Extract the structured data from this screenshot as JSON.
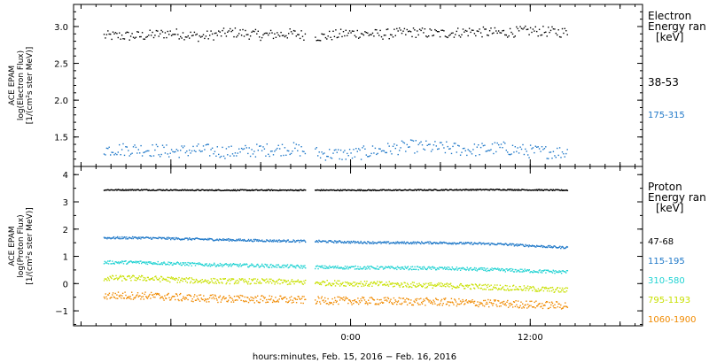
{
  "chart_data": [
    {
      "type": "scatter",
      "panel": "electrons",
      "ylabel_lines": [
        "ACE EPAM",
        "log(Electron Flux)",
        "[1/(cm²s ster MeV)]"
      ],
      "y_ticks": [
        "1.5",
        "2.0",
        "2.5",
        "3.0"
      ],
      "ylim": [
        1.1,
        3.3
      ],
      "legend_title": [
        "Electron",
        "Energy ran"
      ],
      "legend_unit": "[keV]",
      "data_gap_hours": [
        -3.0,
        -2.4
      ],
      "series": [
        {
          "name": "38-53",
          "color": "#000000",
          "level": 2.9,
          "scatter": 0.07,
          "points": [
            [
              -14,
              2.88
            ],
            [
              -12,
              2.92
            ],
            [
              -10,
              2.87
            ],
            [
              -8,
              2.93
            ],
            [
              -6,
              2.89
            ],
            [
              -4,
              2.91
            ],
            [
              -2,
              2.87
            ],
            [
              0,
              2.92
            ],
            [
              2,
              2.9
            ],
            [
              4,
              2.93
            ],
            [
              6,
              2.91
            ],
            [
              8,
              2.94
            ],
            [
              10,
              2.92
            ],
            [
              12,
              2.95
            ],
            [
              14,
              2.93
            ]
          ]
        },
        {
          "name": "175-315",
          "color": "#1f78c8",
          "level": 1.32,
          "scatter": 0.09,
          "points": [
            [
              -14,
              1.34
            ],
            [
              -12,
              1.31
            ],
            [
              -10,
              1.33
            ],
            [
              -8,
              1.3
            ],
            [
              -6,
              1.33
            ],
            [
              -4,
              1.35
            ],
            [
              -2,
              1.28
            ],
            [
              0,
              1.27
            ],
            [
              2,
              1.33
            ],
            [
              4,
              1.38
            ],
            [
              6,
              1.36
            ],
            [
              8,
              1.33
            ],
            [
              10,
              1.36
            ],
            [
              12,
              1.31
            ],
            [
              14,
              1.3
            ]
          ]
        }
      ]
    },
    {
      "type": "scatter",
      "panel": "protons",
      "ylabel_lines": [
        "ACE EPAM",
        "log(Proton Flux)",
        "[1/(cm²s ster MeV)]"
      ],
      "y_ticks": [
        "−1",
        "0",
        "1",
        "2",
        "3",
        "4"
      ],
      "ylim": [
        -1.55,
        4.3
      ],
      "legend_title": [
        "Proton",
        "Energy ran"
      ],
      "legend_unit": "[keV]",
      "data_gap_hours": [
        -3.0,
        -2.4
      ],
      "series": [
        {
          "name": "47-68",
          "color": "#000000",
          "level": 3.45,
          "scatter": 0.02,
          "points": [
            [
              -14,
              3.46
            ],
            [
              -10,
              3.45
            ],
            [
              -6,
              3.45
            ],
            [
              -2,
              3.45
            ],
            [
              2,
              3.45
            ],
            [
              6,
              3.46
            ],
            [
              10,
              3.47
            ],
            [
              14,
              3.45
            ]
          ]
        },
        {
          "name": "115-195",
          "color": "#1f78c8",
          "level": 1.55,
          "scatter": 0.04,
          "points": [
            [
              -14,
              1.7
            ],
            [
              -10,
              1.65
            ],
            [
              -6,
              1.6
            ],
            [
              -2,
              1.57
            ],
            [
              2,
              1.52
            ],
            [
              6,
              1.52
            ],
            [
              10,
              1.47
            ],
            [
              14,
              1.35
            ]
          ]
        },
        {
          "name": "310-580",
          "color": "#22d3d3",
          "level": 0.6,
          "scatter": 0.06,
          "points": [
            [
              -14,
              0.8
            ],
            [
              -10,
              0.72
            ],
            [
              -6,
              0.68
            ],
            [
              -2,
              0.62
            ],
            [
              2,
              0.6
            ],
            [
              6,
              0.58
            ],
            [
              10,
              0.52
            ],
            [
              14,
              0.45
            ]
          ]
        },
        {
          "name": "795-1193",
          "color": "#c8e000",
          "level": 0.0,
          "scatter": 0.1,
          "points": [
            [
              -14,
              0.22
            ],
            [
              -10,
              0.12
            ],
            [
              -6,
              0.1
            ],
            [
              -2,
              0.05
            ],
            [
              2,
              0.0
            ],
            [
              6,
              -0.05
            ],
            [
              10,
              -0.12
            ],
            [
              14,
              -0.22
            ]
          ]
        },
        {
          "name": "1060-1900",
          "color": "#f08a00",
          "level": -0.6,
          "scatter": 0.14,
          "points": [
            [
              -14,
              -0.42
            ],
            [
              -10,
              -0.52
            ],
            [
              -6,
              -0.55
            ],
            [
              -2,
              -0.6
            ],
            [
              2,
              -0.62
            ],
            [
              6,
              -0.65
            ],
            [
              10,
              -0.72
            ],
            [
              14,
              -0.78
            ]
          ]
        }
      ]
    }
  ],
  "x_axis": {
    "xlim_hours": [
      -18.5,
      19.5
    ],
    "tick_hours": [
      -18,
      -12,
      -6,
      0,
      6,
      12,
      18
    ],
    "labeled_ticks": [
      {
        "hour": 0,
        "label": "0:00"
      },
      {
        "hour": 12,
        "label": "12:00"
      }
    ],
    "data_range_hours": [
      -16.5,
      14.5
    ],
    "xlabel": "hours:minutes, Feb. 15, 2016 − Feb. 16, 2016"
  }
}
